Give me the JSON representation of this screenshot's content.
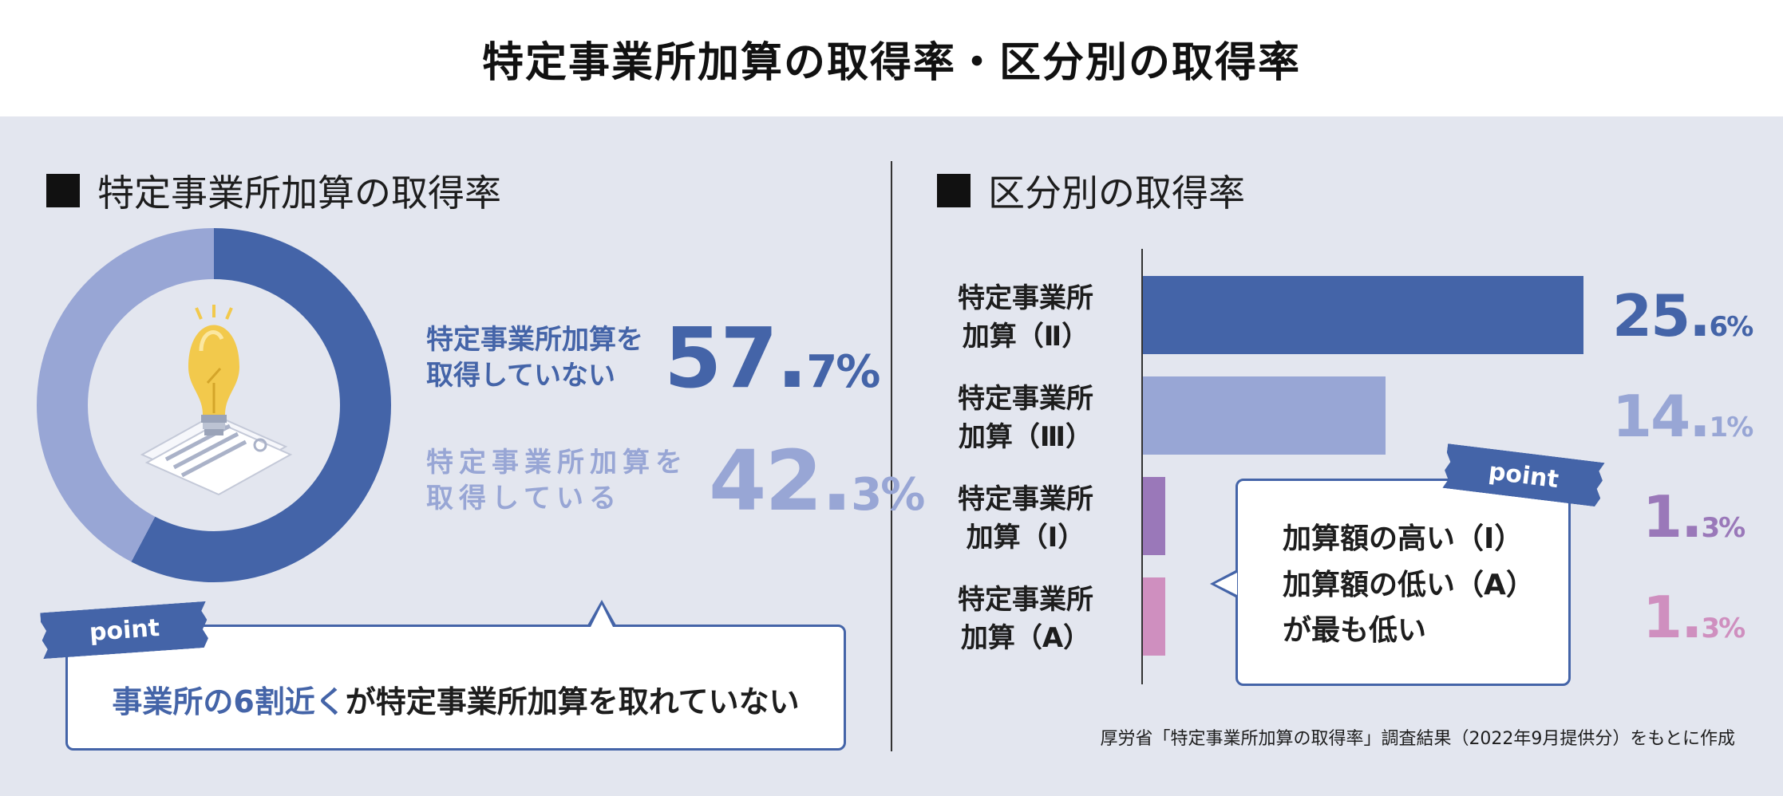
{
  "title": "特定事業所加算の取得率・区分別の取得率",
  "left_section": {
    "title": "特定事業所加算の取得率",
    "stat_not_acquired": {
      "label_line1": "特定事業所加算を",
      "label_line2": "取得していない",
      "value_int": "57.",
      "value_dec": "7",
      "unit": "%"
    },
    "stat_acquired": {
      "label_line1": "特定事業所加算を",
      "label_line2": "取得している",
      "value_int": "42.",
      "value_dec": "3",
      "unit": "%"
    },
    "point_tag": "point",
    "callout": {
      "highlight": "事業所の6割近く",
      "rest": "が特定事業所加算を取れていない"
    }
  },
  "right_section": {
    "title": "区分別の取得率",
    "point_tag": "point",
    "callout_lines": [
      "加算額の高い（Ⅰ）",
      "加算額の低い（A）",
      "が最も低い"
    ]
  },
  "source": "厚労省「特定事業所加算の取得率」調査結果（2022年9月提供分）をもとに作成",
  "colors": {
    "dark_blue": "#4464a8",
    "light_blue": "#98a6d5",
    "purple": "#9a78b9",
    "pink": "#cf8fbf",
    "bulb": "#f2c94c"
  },
  "chart_data": [
    {
      "type": "pie",
      "title": "特定事業所加算の取得率",
      "slices": [
        {
          "name": "特定事業所加算を取得していない",
          "value": 57.7,
          "color": "#4464a8"
        },
        {
          "name": "特定事業所加算を取得している",
          "value": 42.3,
          "color": "#98a6d5"
        }
      ]
    },
    {
      "type": "bar",
      "title": "区分別の取得率",
      "orientation": "horizontal",
      "categories": [
        {
          "line1": "特定事業所",
          "line2": "加算（Ⅱ）"
        },
        {
          "line1": "特定事業所",
          "line2": "加算（Ⅲ）"
        },
        {
          "line1": "特定事業所",
          "line2": "加算（Ⅰ）"
        },
        {
          "line1": "特定事業所",
          "line2": "加算（A）"
        }
      ],
      "values": [
        25.6,
        14.1,
        1.3,
        1.3
      ],
      "value_labels": [
        {
          "int": "25.",
          "dec": "6",
          "unit": "%"
        },
        {
          "int": "14.",
          "dec": "1",
          "unit": "%"
        },
        {
          "int": "1.",
          "dec": "3",
          "unit": "%"
        },
        {
          "int": "1.",
          "dec": "3",
          "unit": "%"
        }
      ],
      "bar_colors": [
        "#4464a8",
        "#98a6d5",
        "#9a78b9",
        "#cf8fbf"
      ],
      "xlim": [
        0,
        25.6
      ]
    }
  ]
}
